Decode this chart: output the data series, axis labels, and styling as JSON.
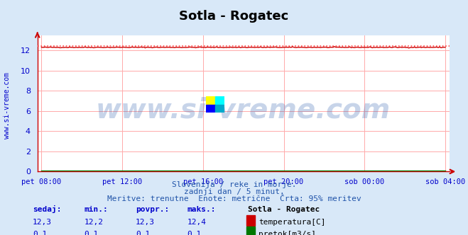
{
  "title": "Sotla - Rogatec",
  "bg_color": "#d8e8f8",
  "plot_bg_color": "#ffffff",
  "grid_color": "#ffaaaa",
  "x_labels": [
    "pet 08:00",
    "pet 12:00",
    "pet 16:00",
    "pet 20:00",
    "sob 00:00",
    "sob 04:00"
  ],
  "x_ticks_norm": [
    0.0,
    0.2,
    0.4,
    0.6,
    0.8,
    1.0
  ],
  "ylim": [
    0,
    13.5
  ],
  "yticks": [
    0,
    2,
    4,
    6,
    8,
    10,
    12
  ],
  "temp_value": 12.3,
  "temp_max_dotted": 12.4,
  "flow_value": 0.1,
  "temp_color": "#cc0000",
  "flow_color": "#007700",
  "dotted_color": "#ff4444",
  "watermark_text": "www.si-vreme.com",
  "watermark_color": "#2255aa",
  "watermark_alpha": 0.25,
  "subtitle1": "Slovenija / reke in morje.",
  "subtitle2": "zadnji dan / 5 minut.",
  "subtitle3": "Meritve: trenutne  Enote: metrične  Črta: 95% meritev",
  "subtitle_color": "#2255aa",
  "label_color": "#0000cc",
  "ylabel_text": "www.si-vreme.com",
  "ylabel_color": "#0000cc",
  "table_headers": [
    "sedaj:",
    "min.:",
    "povpr.:",
    "maks.:"
  ],
  "table_row1_values": [
    "12,3",
    "12,2",
    "12,3",
    "12,4"
  ],
  "table_row2_values": [
    "0,1",
    "0,1",
    "0,1",
    "0,1"
  ],
  "table_station": "Sotla - Rogatec",
  "table_legend1": "temperatura[C]",
  "table_legend2": "pretok[m3/s]",
  "num_points": 289
}
